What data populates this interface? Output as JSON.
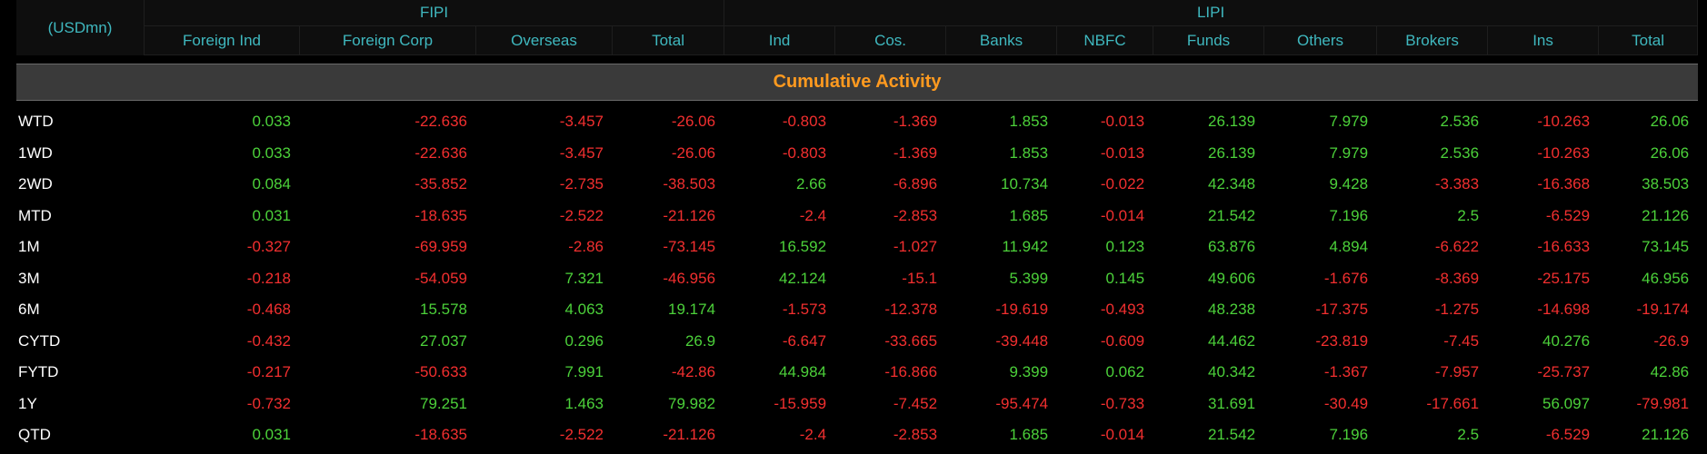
{
  "header": {
    "unit_label": "(USDmn)",
    "groups": [
      {
        "label": "FIPI",
        "span": 4
      },
      {
        "label": "LIPI",
        "span": 9
      }
    ],
    "columns": [
      "Foreign Ind",
      "Foreign Corp",
      "Overseas",
      "Total",
      "Ind",
      "Cos.",
      "Banks",
      "NBFC",
      "Funds",
      "Others",
      "Brokers",
      "Ins",
      "Total"
    ]
  },
  "section_title": "Cumulative Activity",
  "colors": {
    "positive": "#4cd13a",
    "negative": "#f22f2f",
    "header_text": "#3fb8bf",
    "section_text": "#ff9a1f"
  },
  "rows": [
    {
      "label": "WTD",
      "values": [
        "0.033",
        "-22.636",
        "-3.457",
        "-26.06",
        "-0.803",
        "-1.369",
        "1.853",
        "-0.013",
        "26.139",
        "7.979",
        "2.536",
        "-10.263",
        "26.06"
      ]
    },
    {
      "label": "1WD",
      "values": [
        "0.033",
        "-22.636",
        "-3.457",
        "-26.06",
        "-0.803",
        "-1.369",
        "1.853",
        "-0.013",
        "26.139",
        "7.979",
        "2.536",
        "-10.263",
        "26.06"
      ]
    },
    {
      "label": "2WD",
      "values": [
        "0.084",
        "-35.852",
        "-2.735",
        "-38.503",
        "2.66",
        "-6.896",
        "10.734",
        "-0.022",
        "42.348",
        "9.428",
        "-3.383",
        "-16.368",
        "38.503"
      ]
    },
    {
      "label": "MTD",
      "values": [
        "0.031",
        "-18.635",
        "-2.522",
        "-21.126",
        "-2.4",
        "-2.853",
        "1.685",
        "-0.014",
        "21.542",
        "7.196",
        "2.5",
        "-6.529",
        "21.126"
      ]
    },
    {
      "label": "1M",
      "values": [
        "-0.327",
        "-69.959",
        "-2.86",
        "-73.145",
        "16.592",
        "-1.027",
        "11.942",
        "0.123",
        "63.876",
        "4.894",
        "-6.622",
        "-16.633",
        "73.145"
      ]
    },
    {
      "label": "3M",
      "values": [
        "-0.218",
        "-54.059",
        "7.321",
        "-46.956",
        "42.124",
        "-15.1",
        "5.399",
        "0.145",
        "49.606",
        "-1.676",
        "-8.369",
        "-25.175",
        "46.956"
      ]
    },
    {
      "label": "6M",
      "values": [
        "-0.468",
        "15.578",
        "4.063",
        "19.174",
        "-1.573",
        "-12.378",
        "-19.619",
        "-0.493",
        "48.238",
        "-17.375",
        "-1.275",
        "-14.698",
        "-19.174"
      ]
    },
    {
      "label": "CYTD",
      "values": [
        "-0.432",
        "27.037",
        "0.296",
        "26.9",
        "-6.647",
        "-33.665",
        "-39.448",
        "-0.609",
        "44.462",
        "-23.819",
        "-7.45",
        "40.276",
        "-26.9"
      ]
    },
    {
      "label": "FYTD",
      "values": [
        "-0.217",
        "-50.633",
        "7.991",
        "-42.86",
        "44.984",
        "-16.866",
        "9.399",
        "0.062",
        "40.342",
        "-1.367",
        "-7.957",
        "-25.737",
        "42.86"
      ]
    },
    {
      "label": "1Y",
      "values": [
        "-0.732",
        "79.251",
        "1.463",
        "79.982",
        "-15.959",
        "-7.452",
        "-95.474",
        "-0.733",
        "31.691",
        "-30.49",
        "-17.661",
        "56.097",
        "-79.981"
      ]
    },
    {
      "label": "QTD",
      "values": [
        "0.031",
        "-18.635",
        "-2.522",
        "-21.126",
        "-2.4",
        "-2.853",
        "1.685",
        "-0.014",
        "21.542",
        "7.196",
        "2.5",
        "-6.529",
        "21.126"
      ]
    }
  ]
}
